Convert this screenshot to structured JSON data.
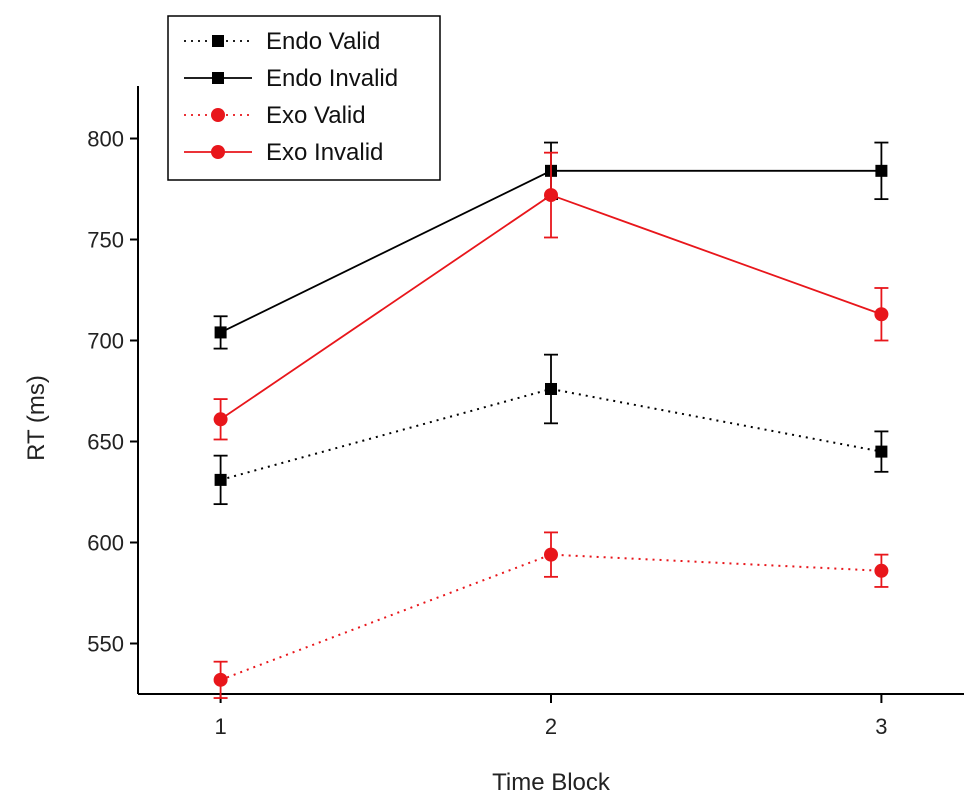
{
  "chart_data": {
    "type": "line",
    "title": "",
    "xlabel": "Time Block",
    "ylabel": "RT (ms)",
    "x": [
      1,
      2,
      3
    ],
    "xticks": [
      1,
      2,
      3
    ],
    "xlim": [
      0.75,
      3.25
    ],
    "ylim": [
      525,
      826
    ],
    "yticks": [
      550,
      600,
      650,
      700,
      750,
      800
    ],
    "grid": false,
    "legend": "top-left",
    "series": [
      {
        "name": "Endo Valid",
        "color": "#000000",
        "line": "dotted",
        "marker": "square",
        "values": [
          631,
          676,
          645
        ],
        "err": [
          12,
          17,
          10
        ]
      },
      {
        "name": "Endo Invalid",
        "color": "#000000",
        "line": "solid",
        "marker": "square",
        "values": [
          704,
          784,
          784
        ],
        "err": [
          8,
          14,
          14
        ]
      },
      {
        "name": "Exo Valid",
        "color": "#e8161b",
        "line": "dotted",
        "marker": "circle",
        "values": [
          532,
          594,
          586
        ],
        "err": [
          9,
          11,
          8
        ]
      },
      {
        "name": "Exo Invalid",
        "color": "#e8161b",
        "line": "solid",
        "marker": "circle",
        "values": [
          661,
          772,
          713
        ],
        "err": [
          10,
          21,
          13
        ]
      }
    ]
  }
}
